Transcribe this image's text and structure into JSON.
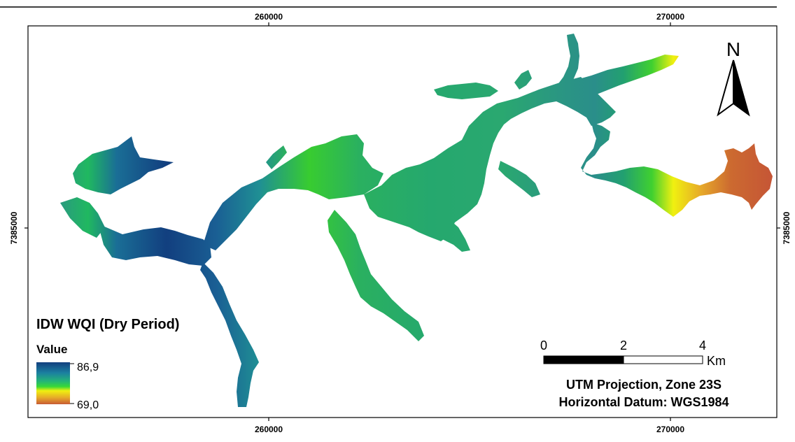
{
  "map": {
    "axis_labels": {
      "x_top": [
        "260000",
        "270000"
      ],
      "x_bottom": [
        "260000",
        "270000"
      ],
      "y_left": [
        "7385000"
      ],
      "y_right": [
        "7385000"
      ]
    },
    "north_arrow": {
      "letter": "N",
      "icon": "north-arrow-icon"
    },
    "legend": {
      "title": "IDW WQI (Dry Period)",
      "subtitle": "Value",
      "max_label": "86,9",
      "min_label": "69,0",
      "colors": [
        "#123f7f",
        "#1b7fa0",
        "#24b478",
        "#38d838",
        "#f0f010",
        "#e6a72a",
        "#c75b34"
      ]
    },
    "scale_bar": {
      "ticks": [
        "0",
        "2",
        "4"
      ],
      "unit": "Km"
    },
    "projection": {
      "line1": "UTM Projection, Zone 23S",
      "line2": "Horizontal Datum: WGS1984"
    }
  }
}
